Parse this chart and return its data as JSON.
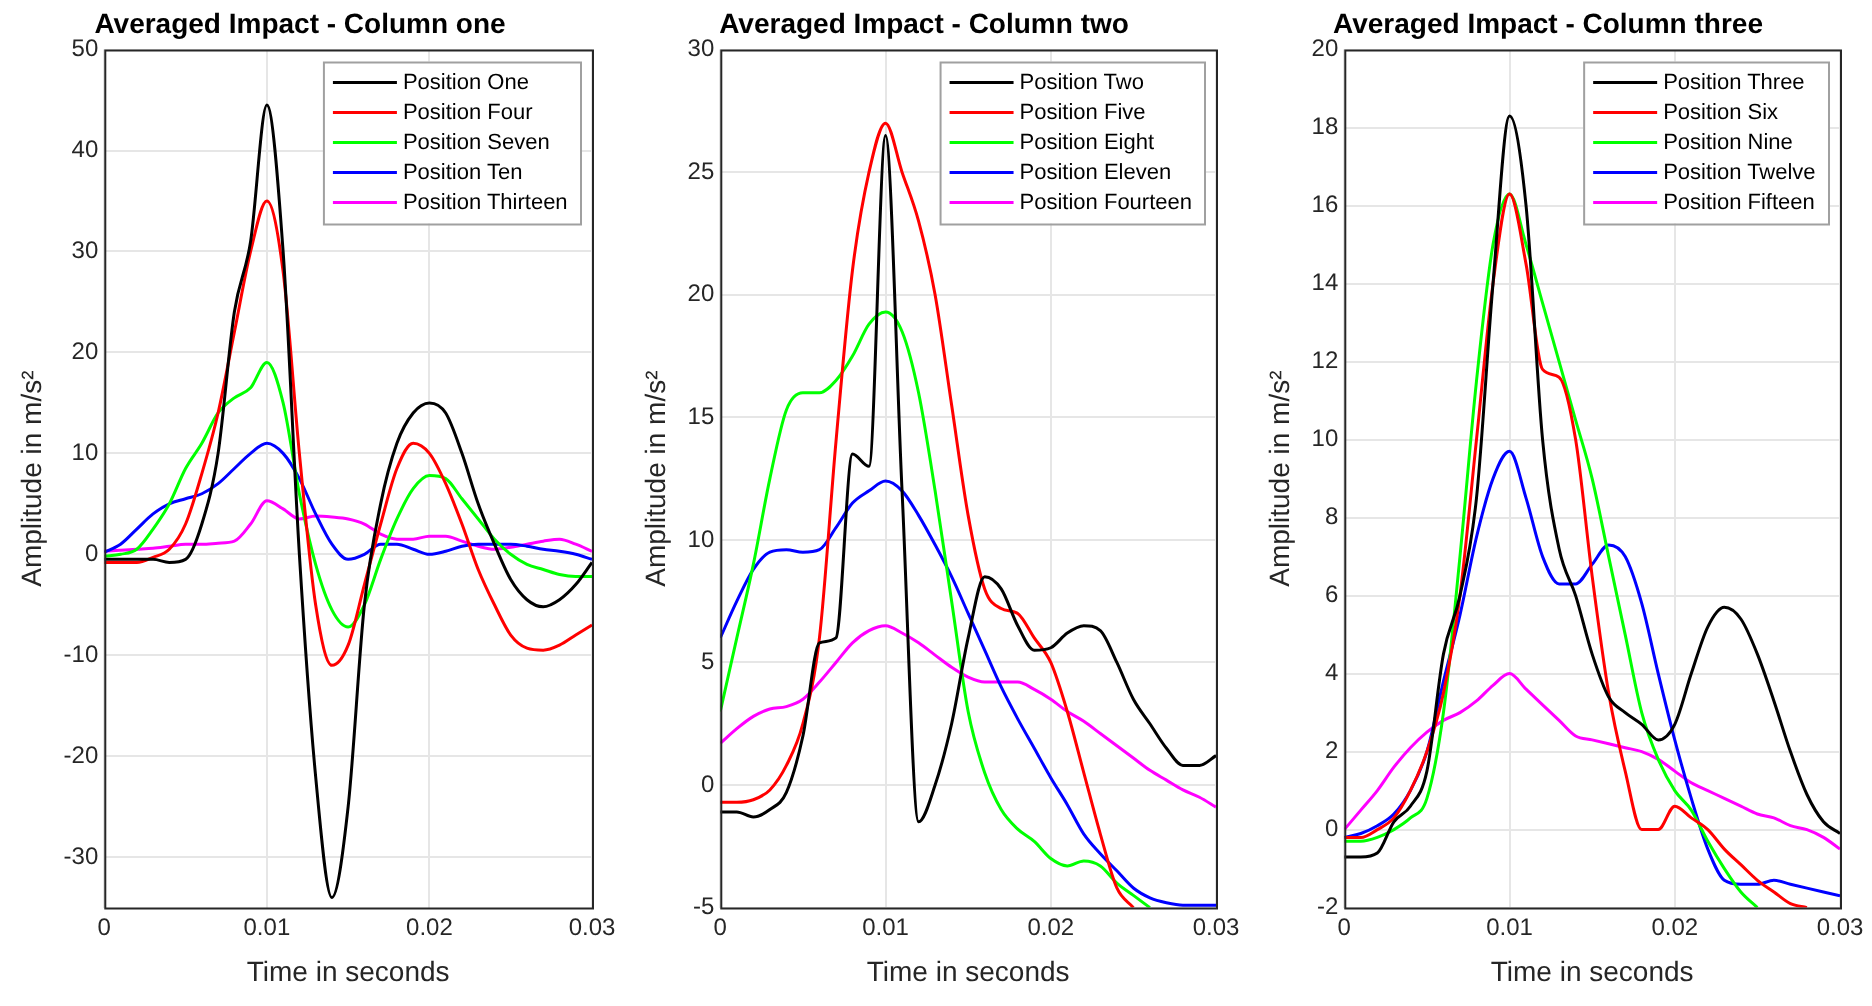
{
  "chart_data": [
    {
      "type": "line",
      "title": "Averaged Impact - Column one",
      "xlabel": "Time in seconds",
      "ylabel": "Amplitude in m/s²",
      "xlim": [
        0,
        0.03
      ],
      "xticks": [
        0,
        0.01,
        0.02,
        0.03
      ],
      "ylim": [
        -35,
        50
      ],
      "yticks": [
        -30,
        -20,
        -10,
        0,
        10,
        20,
        30,
        40,
        50
      ],
      "grid": true,
      "legend": "top right",
      "line_style": "solid",
      "x": [
        0,
        0.001,
        0.002,
        0.003,
        0.004,
        0.005,
        0.006,
        0.007,
        0.008,
        0.009,
        0.01,
        0.011,
        0.012,
        0.013,
        0.014,
        0.015,
        0.016,
        0.017,
        0.018,
        0.019,
        0.02,
        0.021,
        0.022,
        0.023,
        0.024,
        0.025,
        0.026,
        0.027,
        0.028,
        0.029,
        0.03
      ],
      "series": [
        {
          "name": "Position One",
          "color": "#000000",
          "values": [
            -0.5,
            -0.5,
            -0.5,
            -0.5,
            -0.8,
            -0.5,
            3,
            10,
            24,
            31,
            44.5,
            30,
            0,
            -22,
            -34,
            -25,
            -5,
            5,
            11,
            14,
            15,
            14,
            10,
            5,
            1,
            -2.5,
            -4.5,
            -5.2,
            -4.5,
            -3,
            -0.8
          ]
        },
        {
          "name": "Position Four",
          "color": "#ff0000",
          "values": [
            -0.8,
            -0.8,
            -0.8,
            -0.3,
            0.5,
            3,
            8,
            14,
            22,
            30,
            35,
            28,
            10,
            -5,
            -11,
            -9,
            -3,
            3,
            8.5,
            11,
            10,
            7,
            3,
            -1.5,
            -5,
            -8,
            -9.3,
            -9.5,
            -9,
            -8,
            -7
          ]
        },
        {
          "name": "Position Seven",
          "color": "#00ff00",
          "values": [
            -0.2,
            0,
            0.5,
            2.5,
            5,
            8.5,
            11,
            14,
            15.5,
            16.5,
            19,
            15,
            6,
            -1,
            -5.5,
            -7.2,
            -5,
            -0.5,
            3.5,
            6.5,
            7.8,
            7.5,
            5.5,
            3.5,
            1.5,
            0,
            -1,
            -1.5,
            -2,
            -2.2,
            -2.2
          ]
        },
        {
          "name": "Position Ten",
          "color": "#0000ff",
          "values": [
            0.2,
            1,
            2.5,
            4,
            5,
            5.5,
            6,
            7,
            8.5,
            10,
            11,
            10,
            7.5,
            4,
            1,
            -0.5,
            0,
            1,
            1,
            0.5,
            0,
            0.3,
            0.8,
            1,
            1,
            1,
            0.8,
            0.5,
            0.3,
            0,
            -0.5
          ]
        },
        {
          "name": "Position Thirteen",
          "color": "#ff00ff",
          "values": [
            0.3,
            0.4,
            0.5,
            0.6,
            0.8,
            1,
            1,
            1.1,
            1.3,
            3,
            5.3,
            4.5,
            3.5,
            3.8,
            3.7,
            3.5,
            3,
            2,
            1.5,
            1.5,
            1.8,
            1.8,
            1.3,
            0.8,
            0.5,
            0.7,
            1,
            1.3,
            1.5,
            1,
            0.3
          ]
        }
      ]
    },
    {
      "type": "line",
      "title": "Averaged Impact - Column two",
      "xlabel": "Time in seconds",
      "ylabel": "Amplitude in m/s²",
      "xlim": [
        0,
        0.03
      ],
      "xticks": [
        0,
        0.01,
        0.02,
        0.03
      ],
      "ylim": [
        -5,
        30
      ],
      "yticks": [
        -5,
        0,
        5,
        10,
        15,
        20,
        25,
        30
      ],
      "grid": true,
      "legend": "top right",
      "line_style": "solid",
      "x": [
        0,
        0.001,
        0.002,
        0.003,
        0.004,
        0.005,
        0.006,
        0.007,
        0.008,
        0.009,
        0.01,
        0.011,
        0.012,
        0.013,
        0.014,
        0.015,
        0.016,
        0.017,
        0.018,
        0.019,
        0.02,
        0.021,
        0.022,
        0.023,
        0.024,
        0.025,
        0.026,
        0.027,
        0.028,
        0.029,
        0.03
      ],
      "series": [
        {
          "name": "Position Two",
          "color": "#000000",
          "values": [
            -1.1,
            -1.1,
            -1.3,
            -1,
            -0.3,
            2,
            5.8,
            6,
            13.5,
            13,
            26.5,
            12,
            -1.5,
            0,
            2.5,
            6,
            8.5,
            8,
            6.5,
            5.5,
            5.6,
            6.2,
            6.5,
            6.3,
            5,
            3.5,
            2.5,
            1.5,
            0.8,
            0.8,
            1.2
          ]
        },
        {
          "name": "Position Five",
          "color": "#ff0000",
          "values": [
            -0.7,
            -0.7,
            -0.6,
            -0.2,
            0.8,
            2.5,
            6,
            14,
            21,
            25,
            27,
            25,
            23,
            20,
            15.5,
            11,
            8,
            7.2,
            7,
            6,
            5,
            3,
            0.5,
            -2,
            -4.2,
            -5,
            null,
            null,
            null,
            null,
            null
          ]
        },
        {
          "name": "Position Eight",
          "color": "#00ff00",
          "values": [
            3,
            6,
            9,
            12.5,
            15.3,
            16,
            16,
            16.5,
            17.5,
            18.8,
            19.3,
            18.5,
            16,
            12,
            7.5,
            3,
            0.5,
            -1,
            -1.8,
            -2.3,
            -3,
            -3.3,
            -3.1,
            -3.3,
            -4,
            -4.5,
            -5,
            null,
            null,
            null,
            null
          ]
        },
        {
          "name": "Position Eleven",
          "color": "#0000ff",
          "values": [
            6,
            7.5,
            8.8,
            9.5,
            9.6,
            9.5,
            9.6,
            10.5,
            11.5,
            12,
            12.4,
            12,
            11,
            9.8,
            8.5,
            7,
            5.5,
            4,
            2.7,
            1.5,
            0.3,
            -0.8,
            -2,
            -2.8,
            -3.5,
            -4.2,
            -4.6,
            -4.8,
            -4.9,
            -4.9,
            -4.9
          ]
        },
        {
          "name": "Position Fourteen",
          "color": "#ff00ff",
          "values": [
            1.7,
            2.3,
            2.8,
            3.1,
            3.2,
            3.5,
            4.2,
            5,
            5.8,
            6.3,
            6.5,
            6.2,
            5.8,
            5.3,
            4.8,
            4.4,
            4.2,
            4.2,
            4.2,
            3.9,
            3.5,
            3,
            2.6,
            2.1,
            1.6,
            1.1,
            0.6,
            0.2,
            -0.2,
            -0.5,
            -0.9
          ]
        }
      ]
    },
    {
      "type": "line",
      "title": "Averaged Impact - Column three",
      "xlabel": "Time in seconds",
      "ylabel": "Amplitude in m/s²",
      "xlim": [
        0,
        0.03
      ],
      "xticks": [
        0,
        0.01,
        0.02,
        0.03
      ],
      "ylim": [
        -2,
        20
      ],
      "yticks": [
        -2,
        0,
        2,
        4,
        6,
        8,
        10,
        12,
        14,
        16,
        18,
        20
      ],
      "grid": true,
      "legend": "top right",
      "line_style": "solid",
      "x": [
        0,
        0.001,
        0.002,
        0.003,
        0.004,
        0.005,
        0.006,
        0.007,
        0.008,
        0.009,
        0.01,
        0.011,
        0.012,
        0.013,
        0.014,
        0.015,
        0.016,
        0.017,
        0.018,
        0.019,
        0.02,
        0.021,
        0.022,
        0.023,
        0.024,
        0.025,
        0.026,
        0.027,
        0.028,
        0.029,
        0.03
      ],
      "series": [
        {
          "name": "Position Three",
          "color": "#000000",
          "values": [
            -0.7,
            -0.7,
            -0.6,
            0.2,
            0.6,
            1.5,
            4.5,
            6,
            8.5,
            14,
            18.3,
            16,
            10,
            7.2,
            6,
            4.5,
            3.4,
            3,
            2.7,
            2.3,
            2.7,
            4,
            5.2,
            5.7,
            5.4,
            4.5,
            3.3,
            2,
            0.9,
            0.2,
            -0.1
          ]
        },
        {
          "name": "Position Six",
          "color": "#ff0000",
          "values": [
            -0.2,
            -0.2,
            0,
            0.3,
            1,
            2,
            3.5,
            6,
            10,
            14,
            16.3,
            14.5,
            11.8,
            11.6,
            10,
            6.5,
            3.5,
            1.5,
            0,
            0,
            0.6,
            0.3,
            0,
            -0.5,
            -0.9,
            -1.3,
            -1.6,
            -1.9,
            -2,
            null,
            null
          ]
        },
        {
          "name": "Position Nine",
          "color": "#00ff00",
          "values": [
            -0.3,
            -0.3,
            -0.2,
            0,
            0.3,
            0.8,
            3,
            7,
            11.5,
            15,
            16.3,
            15,
            13.5,
            12,
            10.5,
            9,
            7,
            5,
            3,
            1.8,
            1,
            0.5,
            -0.3,
            -1,
            -1.6,
            -2,
            null,
            null,
            null,
            null,
            null
          ]
        },
        {
          "name": "Position Twelve",
          "color": "#0000ff",
          "values": [
            -0.2,
            -0.1,
            0.1,
            0.4,
            1,
            2,
            3.8,
            5.5,
            7.5,
            9,
            9.7,
            8.5,
            7,
            6.3,
            6.3,
            6.8,
            7.3,
            7,
            5.8,
            4,
            2.3,
            0.8,
            -0.5,
            -1.3,
            -1.4,
            -1.4,
            -1.3,
            -1.4,
            -1.5,
            -1.6,
            -1.7
          ]
        },
        {
          "name": "Position Fifteen",
          "color": "#ff00ff",
          "values": [
            0,
            0.5,
            1,
            1.6,
            2.1,
            2.5,
            2.8,
            3,
            3.3,
            3.7,
            4,
            3.6,
            3.2,
            2.8,
            2.4,
            2.3,
            2.2,
            2.1,
            2,
            1.8,
            1.5,
            1.2,
            1,
            0.8,
            0.6,
            0.4,
            0.3,
            0.1,
            0,
            -0.2,
            -0.5
          ]
        }
      ]
    }
  ]
}
